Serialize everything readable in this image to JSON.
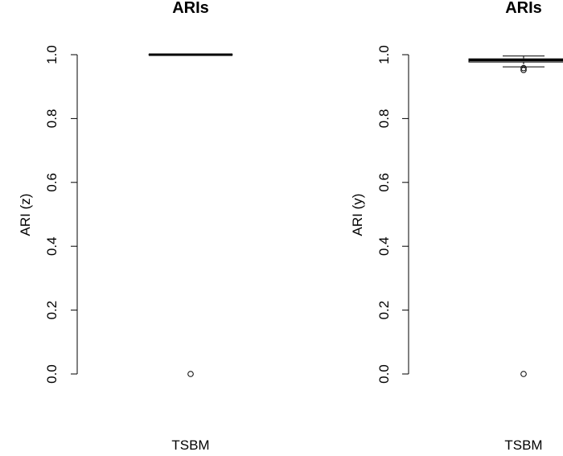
{
  "chart_data": [
    {
      "type": "box",
      "title": "ARIs",
      "ylabel": "ARI (z)",
      "xlabel": "",
      "categories": [
        "TSBM"
      ],
      "ylim": [
        0.0,
        1.0
      ],
      "yticks": [
        "0.0",
        "0.2",
        "0.4",
        "0.6",
        "0.8",
        "1.0"
      ],
      "boxes": [
        {
          "name": "TSBM",
          "q1": 1.0,
          "median": 1.0,
          "q3": 1.0,
          "whisker_low": 1.0,
          "whisker_high": 1.0,
          "outliers": [
            0.0
          ]
        }
      ]
    },
    {
      "type": "box",
      "title": "ARIs",
      "ylabel": "ARI (y)",
      "xlabel": "",
      "categories": [
        "TSBM"
      ],
      "ylim": [
        0.0,
        1.0
      ],
      "yticks": [
        "0.0",
        "0.2",
        "0.4",
        "0.6",
        "0.8",
        "1.0"
      ],
      "boxes": [
        {
          "name": "TSBM",
          "q1": 0.977,
          "median": 0.983,
          "q3": 0.987,
          "whisker_low": 0.962,
          "whisker_high": 0.996,
          "outliers": [
            0.958,
            0.952,
            0.0
          ]
        }
      ]
    }
  ]
}
